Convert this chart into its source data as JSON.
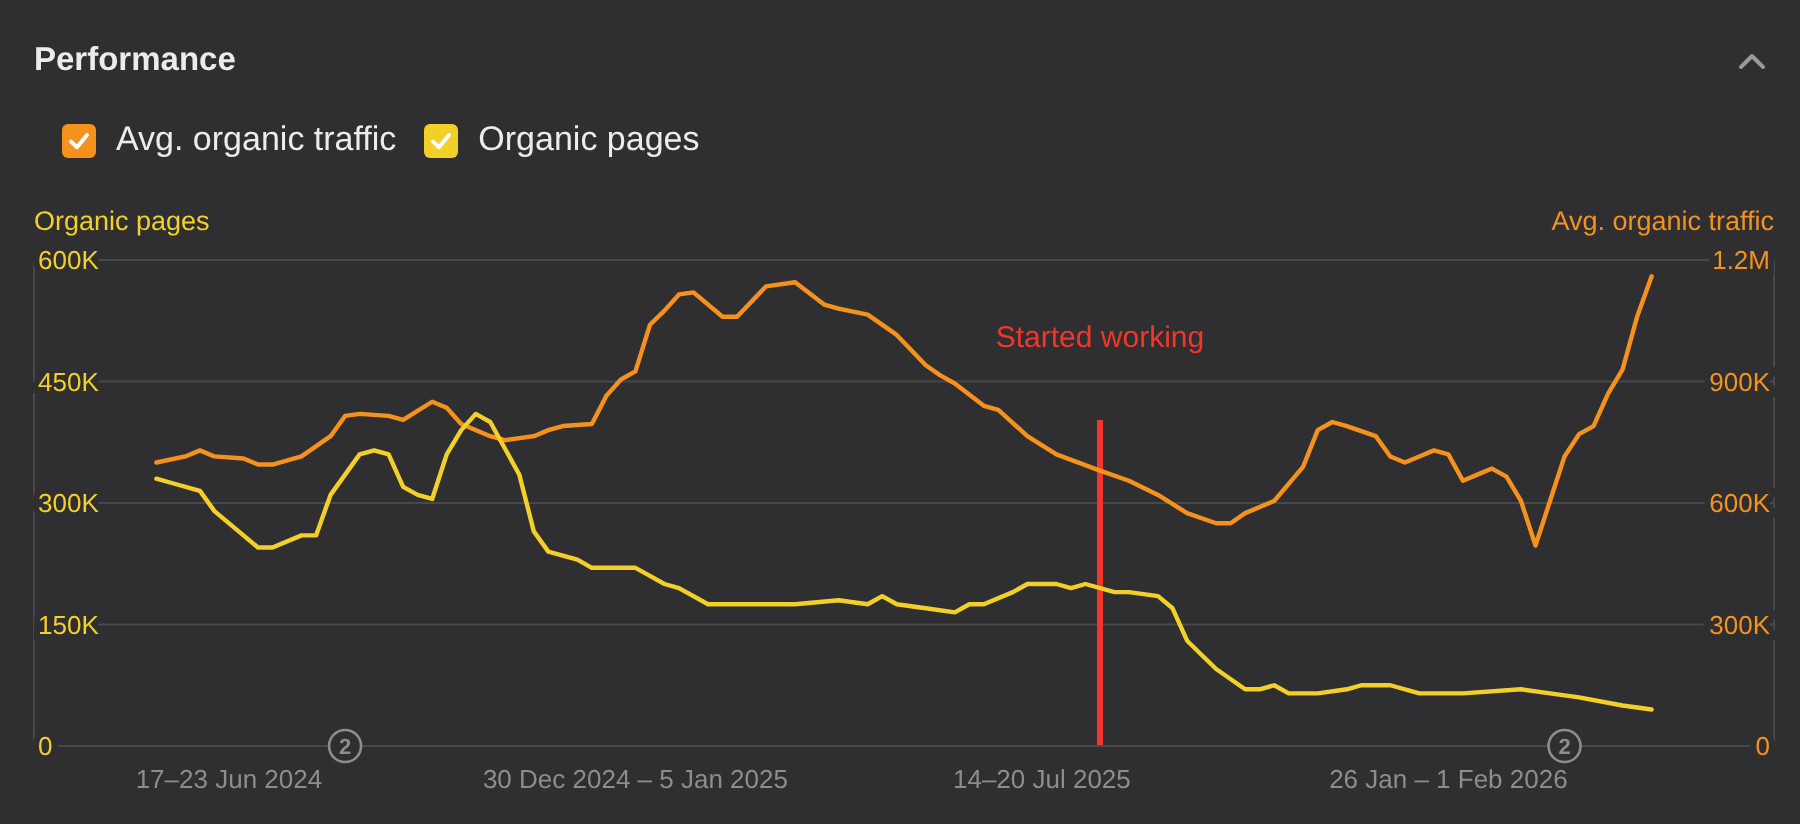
{
  "chart_data": {
    "type": "line",
    "title": "Performance",
    "ylabel": "Organic pages",
    "y2label": "Avg. organic traffic",
    "legend": "top left",
    "grid": "y",
    "xlim": [
      "2024-03-15",
      "2026-07-02"
    ],
    "xticks": [
      {
        "value": "2024-06-17",
        "label": "17–23 Jun 2024"
      },
      {
        "value": "2024-12-30",
        "label": "30 Dec 2024 – 5 Jan 2025"
      },
      {
        "value": "2025-07-14",
        "label": "14–20 Jul 2025"
      },
      {
        "value": "2026-01-26",
        "label": "26 Jan – 1 Feb 2026"
      }
    ],
    "ylim": [
      0,
      600000
    ],
    "yticks": [
      0,
      {
        "value": 150000,
        "label": "150K"
      },
      {
        "value": 300000,
        "label": "300K"
      },
      {
        "value": 450000,
        "label": "450K"
      },
      {
        "value": 600000,
        "label": "600K"
      }
    ],
    "y2lim": [
      0,
      1200000
    ],
    "y2ticks": [
      0,
      {
        "value": 300000,
        "label": "300K"
      },
      {
        "value": 600000,
        "label": "600K"
      },
      {
        "value": 900000,
        "label": "900K"
      },
      {
        "value": 1200000,
        "label": "1.2M"
      }
    ],
    "series": [
      {
        "name": "Avg. organic traffic",
        "color": "#f5921e",
        "axis": "y2",
        "x": [
          "2024-05-13",
          "2024-05-27",
          "2024-06-03",
          "2024-06-10",
          "2024-06-24",
          "2024-07-01",
          "2024-07-08",
          "2024-07-22",
          "2024-08-05",
          "2024-08-12",
          "2024-08-19",
          "2024-09-02",
          "2024-09-09",
          "2024-09-23",
          "2024-09-30",
          "2024-10-07",
          "2024-10-21",
          "2024-10-28",
          "2024-11-11",
          "2024-11-18",
          "2024-11-25",
          "2024-12-09",
          "2024-12-16",
          "2024-12-23",
          "2024-12-30",
          "2025-01-06",
          "2025-01-13",
          "2025-01-20",
          "2025-01-27",
          "2025-02-10",
          "2025-02-17",
          "2025-03-03",
          "2025-03-17",
          "2025-03-31",
          "2025-04-07",
          "2025-04-21",
          "2025-05-05",
          "2025-05-19",
          "2025-05-26",
          "2025-06-02",
          "2025-06-16",
          "2025-06-23",
          "2025-07-07",
          "2025-07-21",
          "2025-08-11",
          "2025-08-25",
          "2025-09-08",
          "2025-09-22",
          "2025-10-06",
          "2025-10-13",
          "2025-10-20",
          "2025-11-03",
          "2025-11-17",
          "2025-11-24",
          "2025-12-01",
          "2025-12-08",
          "2025-12-22",
          "2025-12-29",
          "2026-01-05",
          "2026-01-12",
          "2026-01-19",
          "2026-01-26",
          "2026-02-02",
          "2026-02-09",
          "2026-02-16",
          "2026-02-23",
          "2026-03-02",
          "2026-03-09",
          "2026-03-16",
          "2026-03-23",
          "2026-03-30",
          "2026-04-06",
          "2026-04-13",
          "2026-04-20",
          "2026-04-27",
          "2026-05-04"
        ],
        "values": [
          700000,
          715000,
          730000,
          715000,
          710000,
          695000,
          695000,
          715000,
          765000,
          815000,
          820000,
          815000,
          805000,
          850000,
          835000,
          795000,
          765000,
          755000,
          765000,
          780000,
          790000,
          795000,
          865000,
          905000,
          925000,
          1040000,
          1075000,
          1115000,
          1120000,
          1060000,
          1060000,
          1135000,
          1145000,
          1090000,
          1080000,
          1065000,
          1015000,
          940000,
          915000,
          895000,
          840000,
          830000,
          765000,
          720000,
          680000,
          655000,
          620000,
          575000,
          550000,
          550000,
          575000,
          605000,
          690000,
          780000,
          800000,
          790000,
          765000,
          715000,
          700000,
          715000,
          730000,
          720000,
          655000,
          670000,
          685000,
          665000,
          605000,
          495000,
          605000,
          715000,
          770000,
          790000,
          870000,
          930000,
          1060000,
          1160000
        ]
      },
      {
        "name": "Organic pages",
        "color": "#f3cf2a",
        "x": [
          "2024-05-13",
          "2024-05-20",
          "2024-06-03",
          "2024-06-10",
          "2024-06-24",
          "2024-07-01",
          "2024-07-08",
          "2024-07-22",
          "2024-07-29",
          "2024-08-05",
          "2024-08-19",
          "2024-08-26",
          "2024-09-02",
          "2024-09-09",
          "2024-09-16",
          "2024-09-23",
          "2024-09-30",
          "2024-10-07",
          "2024-10-14",
          "2024-10-21",
          "2024-11-04",
          "2024-11-11",
          "2024-11-18",
          "2024-12-02",
          "2024-12-09",
          "2024-12-30",
          "2025-01-06",
          "2025-01-13",
          "2025-01-20",
          "2025-02-03",
          "2025-02-17",
          "2025-03-03",
          "2025-03-17",
          "2025-04-07",
          "2025-04-21",
          "2025-04-28",
          "2025-05-05",
          "2025-05-19",
          "2025-06-02",
          "2025-06-09",
          "2025-06-16",
          "2025-06-30",
          "2025-07-07",
          "2025-07-21",
          "2025-07-28",
          "2025-08-04",
          "2025-08-18",
          "2025-08-25",
          "2025-09-08",
          "2025-09-15",
          "2025-09-22",
          "2025-10-06",
          "2025-10-20",
          "2025-10-27",
          "2025-11-03",
          "2025-11-10",
          "2025-11-24",
          "2025-12-08",
          "2025-12-15",
          "2025-12-29",
          "2026-01-12",
          "2026-02-02",
          "2026-03-02",
          "2026-03-16",
          "2026-03-30",
          "2026-04-20",
          "2026-05-04"
        ],
        "values": [
          330000,
          325000,
          315000,
          290000,
          260000,
          245000,
          245000,
          260000,
          260000,
          310000,
          360000,
          365000,
          360000,
          320000,
          310000,
          305000,
          360000,
          390000,
          410000,
          400000,
          335000,
          265000,
          240000,
          230000,
          220000,
          220000,
          210000,
          200000,
          195000,
          175000,
          175000,
          175000,
          175000,
          180000,
          175000,
          185000,
          175000,
          170000,
          165000,
          175000,
          175000,
          190000,
          200000,
          200000,
          195000,
          200000,
          190000,
          190000,
          185000,
          170000,
          130000,
          95000,
          70000,
          70000,
          75000,
          65000,
          65000,
          70000,
          75000,
          75000,
          65000,
          65000,
          70000,
          65000,
          60000,
          50000,
          45000
        ]
      }
    ],
    "ref_lines": [
      {
        "axis": "x",
        "value": "2025-08-11",
        "label": "Started working",
        "color": "#f2362a"
      }
    ],
    "annotations": [
      {
        "text": "2",
        "x": "2024-08-12",
        "y": 0
      },
      {
        "text": "2",
        "x": "2026-03-23",
        "y": 0
      }
    ]
  }
}
